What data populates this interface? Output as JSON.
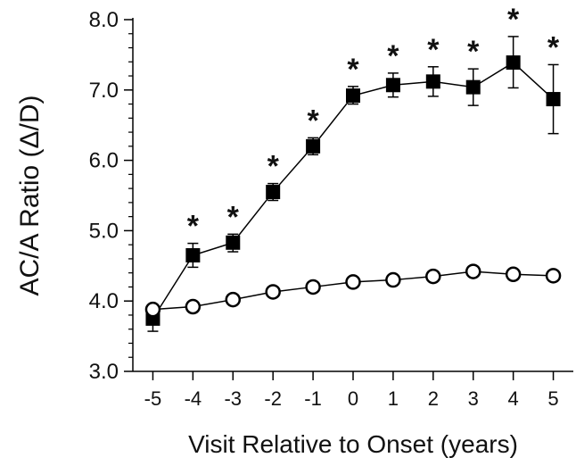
{
  "chart_data": {
    "type": "line",
    "title": "",
    "xlabel": "Visit Relative to Onset (years)",
    "ylabel": "AC/A Ratio (Δ/D)",
    "x": [
      -5,
      -4,
      -3,
      -2,
      -1,
      0,
      1,
      2,
      3,
      4,
      5
    ],
    "x_tick_labels": [
      "-5",
      "-4",
      "-3",
      "-2",
      "-1",
      "0",
      "1",
      "2",
      "3",
      "4",
      "5"
    ],
    "y_ticks": [
      3.0,
      4.0,
      5.0,
      6.0,
      7.0,
      8.0
    ],
    "y_tick_labels": [
      "3.0",
      "4.0",
      "5.0",
      "6.0",
      "7.0",
      "8.0"
    ],
    "xlim": [
      -5.5,
      5.5
    ],
    "ylim": [
      3.0,
      8.0
    ],
    "grid": false,
    "legend": "none",
    "series": [
      {
        "marker": "filled-square",
        "color": "#000000",
        "values": [
          3.75,
          4.65,
          4.83,
          5.55,
          6.2,
          6.92,
          7.07,
          7.12,
          7.04,
          7.39,
          6.87
        ],
        "error_low": [
          3.57,
          4.48,
          4.7,
          5.43,
          6.08,
          6.8,
          6.9,
          6.91,
          6.78,
          7.03,
          6.38
        ],
        "error_high": [
          3.9,
          4.82,
          4.95,
          5.67,
          6.32,
          7.05,
          7.24,
          7.33,
          7.3,
          7.76,
          7.36
        ]
      },
      {
        "marker": "open-circle",
        "color": "#000000",
        "values": [
          3.88,
          3.92,
          4.02,
          4.13,
          4.2,
          4.27,
          4.3,
          4.35,
          4.42,
          4.38,
          4.36
        ],
        "error_low": [
          3.83,
          3.87,
          3.97,
          4.08,
          4.15,
          4.22,
          4.25,
          4.3,
          4.37,
          4.33,
          4.31
        ],
        "error_high": [
          3.93,
          3.97,
          4.07,
          4.18,
          4.25,
          4.32,
          4.35,
          4.4,
          4.47,
          4.43,
          4.41
        ]
      }
    ],
    "annotations": [
      {
        "x": -4,
        "text": "*"
      },
      {
        "x": -3,
        "text": "*"
      },
      {
        "x": -2,
        "text": "*"
      },
      {
        "x": -1,
        "text": "*"
      },
      {
        "x": 0,
        "text": "*"
      },
      {
        "x": 1,
        "text": "*"
      },
      {
        "x": 2,
        "text": "*"
      },
      {
        "x": 3,
        "text": "*"
      },
      {
        "x": 4,
        "text": "*"
      },
      {
        "x": 5,
        "text": "*"
      }
    ]
  }
}
